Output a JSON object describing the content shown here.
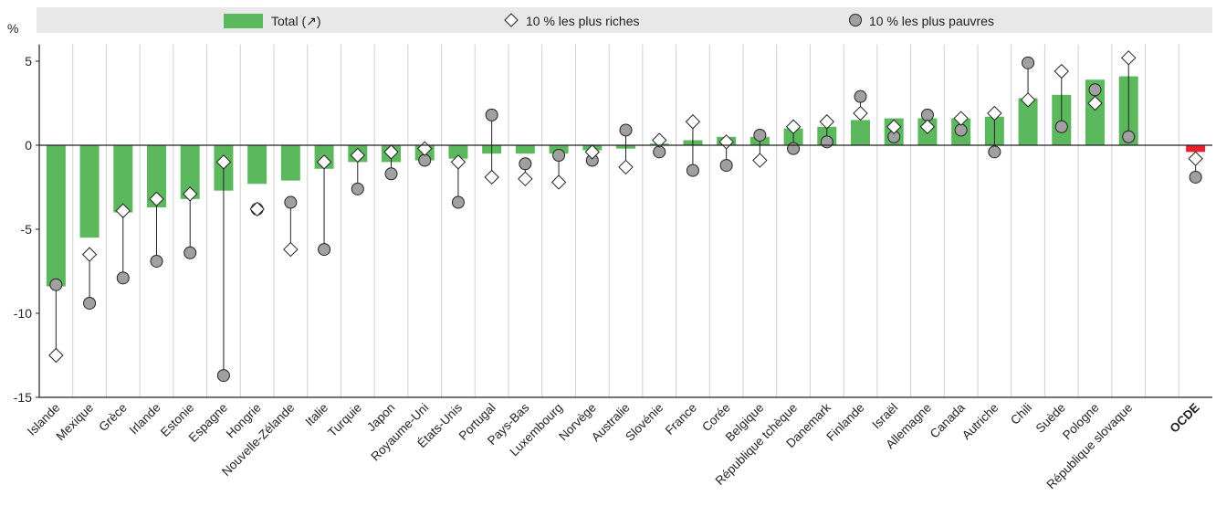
{
  "chart_data": {
    "type": "bar",
    "unit_label": "%",
    "ylim": [
      -15,
      6
    ],
    "yticks": [
      5,
      0,
      -5,
      -10,
      -15
    ],
    "grid": true,
    "legend_position": "top",
    "legend": [
      {
        "label": "Total (↗)",
        "marker": "bar"
      },
      {
        "label": "10 % les plus riches",
        "marker": "diamond"
      },
      {
        "label": "10 % les plus pauvres",
        "marker": "circle"
      }
    ],
    "colors": {
      "total": "#5cb85c",
      "highlight": "#e8202a",
      "circle": "#a0a0a0",
      "grid": "#cfcfcf",
      "legend_bg": "#e8e8e8"
    },
    "categories": [
      "Islande",
      "Mexique",
      "Grèce",
      "Irlande",
      "Estonie",
      "Espagne",
      "Hongrie",
      "Nouvelle-Zélande",
      "Italie",
      "Turquie",
      "Japon",
      "Royaume-Uni",
      "États-Unis",
      "Portugal",
      "Pays-Bas",
      "Luxembourg",
      "Norvège",
      "Australie",
      "Slovénie",
      "France",
      "Corée",
      "Belgique",
      "République tchèque",
      "Danemark",
      "Finlande",
      "Israël",
      "Allemagne",
      "Canada",
      "Autriche",
      "Chili",
      "Suède",
      "Pologne",
      "République slovaque",
      "",
      "OCDE"
    ],
    "highlight_category": "OCDE",
    "series": [
      {
        "name": "Total (↗)",
        "values": [
          -8.4,
          -5.5,
          -4.0,
          -3.7,
          -3.2,
          -2.7,
          -2.3,
          -2.1,
          -1.4,
          -1.0,
          -1.0,
          -0.9,
          -0.8,
          -0.5,
          -0.5,
          -0.5,
          -0.3,
          -0.2,
          0.1,
          0.3,
          0.5,
          0.5,
          1.0,
          1.1,
          1.5,
          1.6,
          1.6,
          1.6,
          1.7,
          2.8,
          3.0,
          3.9,
          4.1,
          null,
          -0.4
        ]
      },
      {
        "name": "10 % les plus riches",
        "values": [
          -12.5,
          -6.5,
          -3.9,
          -3.2,
          -2.9,
          -1.0,
          -3.8,
          -6.2,
          -1.0,
          -0.6,
          -0.4,
          -0.2,
          -1.0,
          -1.9,
          -2.0,
          -2.2,
          -0.4,
          -1.3,
          0.3,
          1.4,
          0.2,
          -0.9,
          1.1,
          1.4,
          1.9,
          1.1,
          1.1,
          1.6,
          1.9,
          2.7,
          4.4,
          2.5,
          5.2,
          null,
          -0.8
        ]
      },
      {
        "name": "10 % les plus pauvres",
        "values": [
          -8.3,
          -9.4,
          -7.9,
          -6.9,
          -6.4,
          -13.7,
          -3.8,
          -3.4,
          -6.2,
          -2.6,
          -1.7,
          -0.9,
          -3.4,
          1.8,
          -1.1,
          -0.6,
          -0.9,
          0.9,
          -0.4,
          -1.5,
          -1.2,
          0.6,
          -0.2,
          0.2,
          2.9,
          0.5,
          1.8,
          0.9,
          -0.4,
          4.9,
          1.1,
          3.3,
          0.5,
          null,
          -1.9
        ]
      }
    ]
  }
}
